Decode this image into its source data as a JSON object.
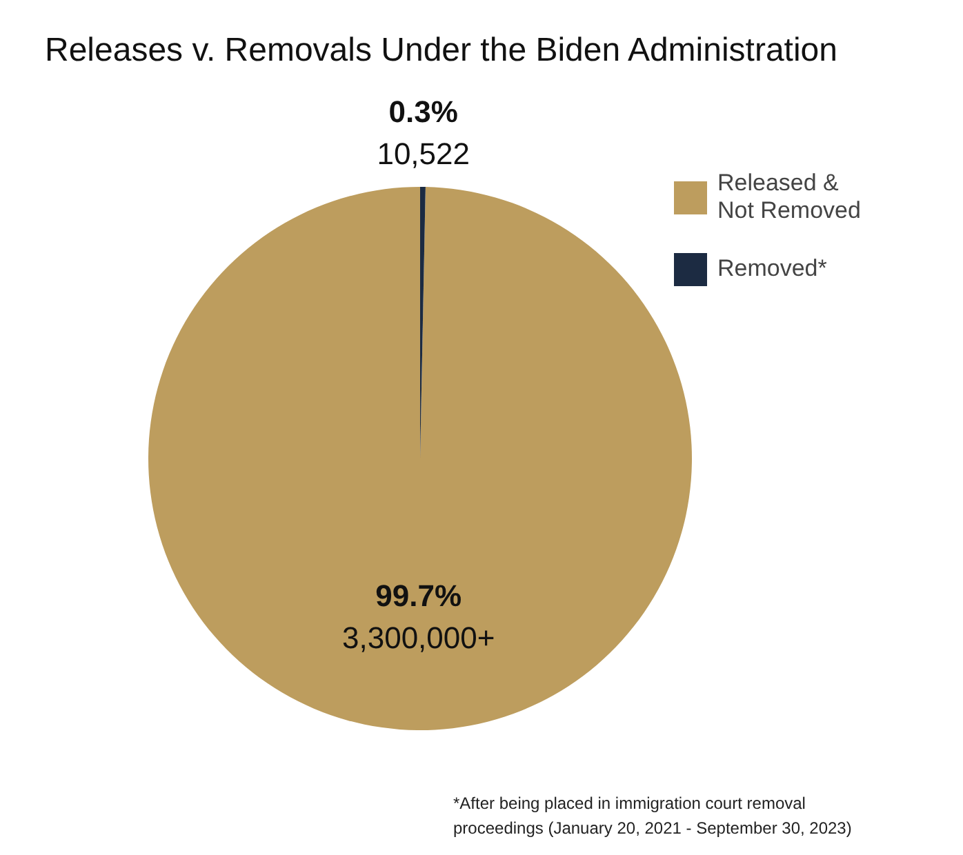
{
  "chart_data": {
    "type": "pie",
    "title": "Releases v. Removals Under the Biden Administration",
    "categories": [
      "Released & Not Removed",
      "Removed*"
    ],
    "values": [
      3300000,
      10522
    ],
    "value_labels": [
      "99.7%\n3,300,000+",
      "0.3%\n10,522"
    ],
    "colors": [
      "#bd9d5e",
      "#1c2b42"
    ],
    "legend": "top right",
    "annotations": [
      "*After being placed in immigration court removal proceedings (January 20, 2021 - September 30, 2023)"
    ]
  }
}
